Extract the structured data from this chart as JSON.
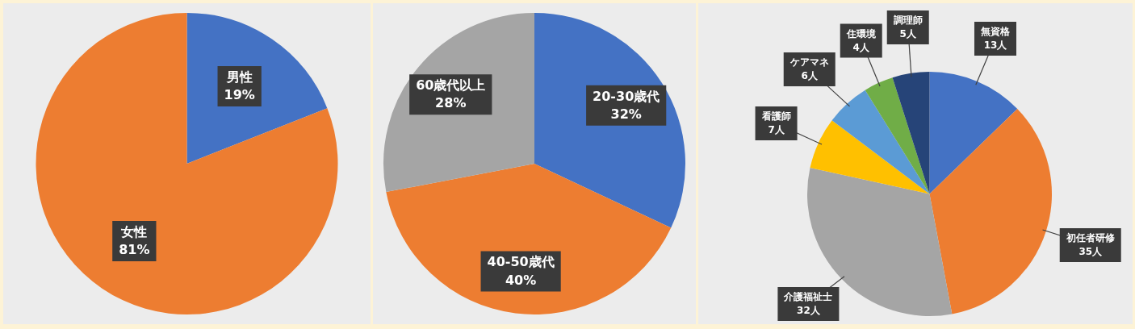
{
  "chart_data": [
    {
      "type": "pie",
      "categories": [
        "男性",
        "女性"
      ],
      "values": [
        19,
        81
      ],
      "colors": [
        "#4472c4",
        "#ed7d31"
      ],
      "value_labels": [
        "19%",
        "81%"
      ]
    },
    {
      "type": "pie",
      "categories": [
        "20-30歳代",
        "40-50歳代",
        "60歳代以上"
      ],
      "values": [
        32,
        40,
        28
      ],
      "colors": [
        "#4472c4",
        "#ed7d31",
        "#a5a5a5"
      ],
      "value_labels": [
        "32%",
        "40%",
        "28%"
      ]
    },
    {
      "type": "pie",
      "categories": [
        "無資格",
        "初任者研修",
        "介護福祉士",
        "看護師",
        "ケアマネ",
        "住環境",
        "調理師"
      ],
      "values": [
        13,
        35,
        32,
        7,
        6,
        4,
        5
      ],
      "colors": [
        "#4472c4",
        "#ed7d31",
        "#a5a5a5",
        "#ffc000",
        "#5b9bd5",
        "#70ad47",
        "#264478"
      ],
      "value_labels": [
        "13人",
        "35人",
        "32人",
        "7人",
        "6人",
        "4人",
        "5人"
      ]
    }
  ]
}
